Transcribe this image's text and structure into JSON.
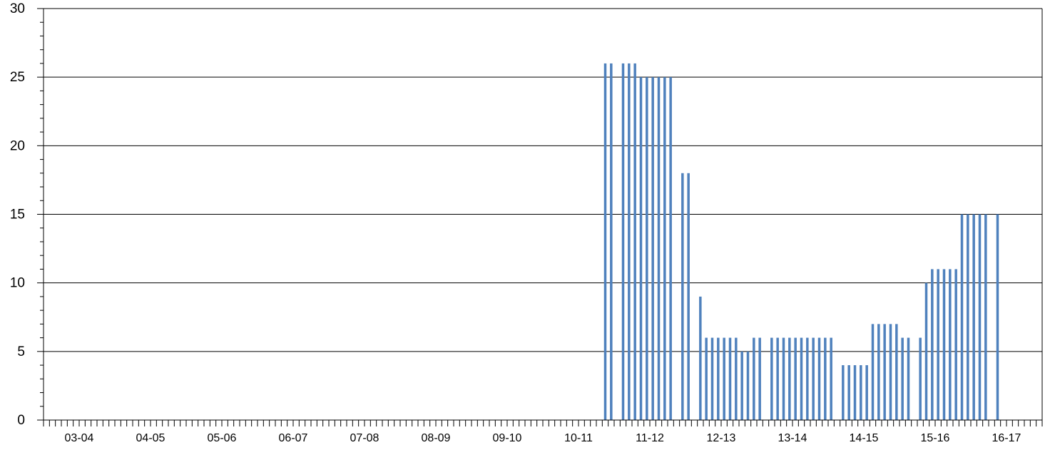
{
  "chart_data": {
    "type": "bar",
    "title": "",
    "xlabel": "",
    "ylabel": "",
    "ylim": [
      0,
      30
    ],
    "yticks": [
      0,
      5,
      10,
      15,
      20,
      25,
      30
    ],
    "grid": true,
    "season_labels": [
      "03-04",
      "04-05",
      "05-06",
      "06-07",
      "07-08",
      "08-09",
      "09-10",
      "10-11",
      "11-12",
      "12-13",
      "13-14",
      "14-15",
      "15-16",
      "16-17"
    ],
    "months_per_season": 12,
    "series": [
      {
        "color": "#4f81bd",
        "values": [
          0,
          0,
          0,
          0,
          0,
          0,
          0,
          0,
          0,
          0,
          0,
          0,
          0,
          0,
          0,
          0,
          0,
          0,
          0,
          0,
          0,
          0,
          0,
          0,
          0,
          0,
          0,
          0,
          0,
          0,
          0,
          0,
          0,
          0,
          0,
          0,
          0,
          0,
          0,
          0,
          0,
          0,
          0,
          0,
          0,
          0,
          0,
          0,
          0,
          0,
          0,
          0,
          0,
          0,
          0,
          0,
          0,
          0,
          0,
          0,
          0,
          0,
          0,
          0,
          0,
          0,
          0,
          0,
          0,
          0,
          0,
          0,
          0,
          0,
          0,
          0,
          0,
          0,
          0,
          0,
          0,
          0,
          0,
          0,
          0,
          0,
          0,
          0,
          0,
          0,
          0,
          0,
          0,
          0,
          26,
          26,
          0,
          26,
          26,
          26,
          25,
          25,
          25,
          25,
          25,
          25,
          0,
          18,
          18,
          0,
          9,
          6,
          6,
          6,
          6,
          6,
          6,
          5,
          5,
          6,
          6,
          0,
          6,
          6,
          6,
          6,
          6,
          6,
          6,
          6,
          6,
          6,
          6,
          0,
          4,
          4,
          4,
          4,
          4,
          7,
          7,
          7,
          7,
          7,
          6,
          6,
          0,
          6,
          10,
          11,
          11,
          11,
          11,
          11,
          15,
          15,
          15,
          15,
          15,
          0,
          15,
          0,
          0,
          0,
          0,
          0,
          0,
          0
        ]
      }
    ]
  }
}
